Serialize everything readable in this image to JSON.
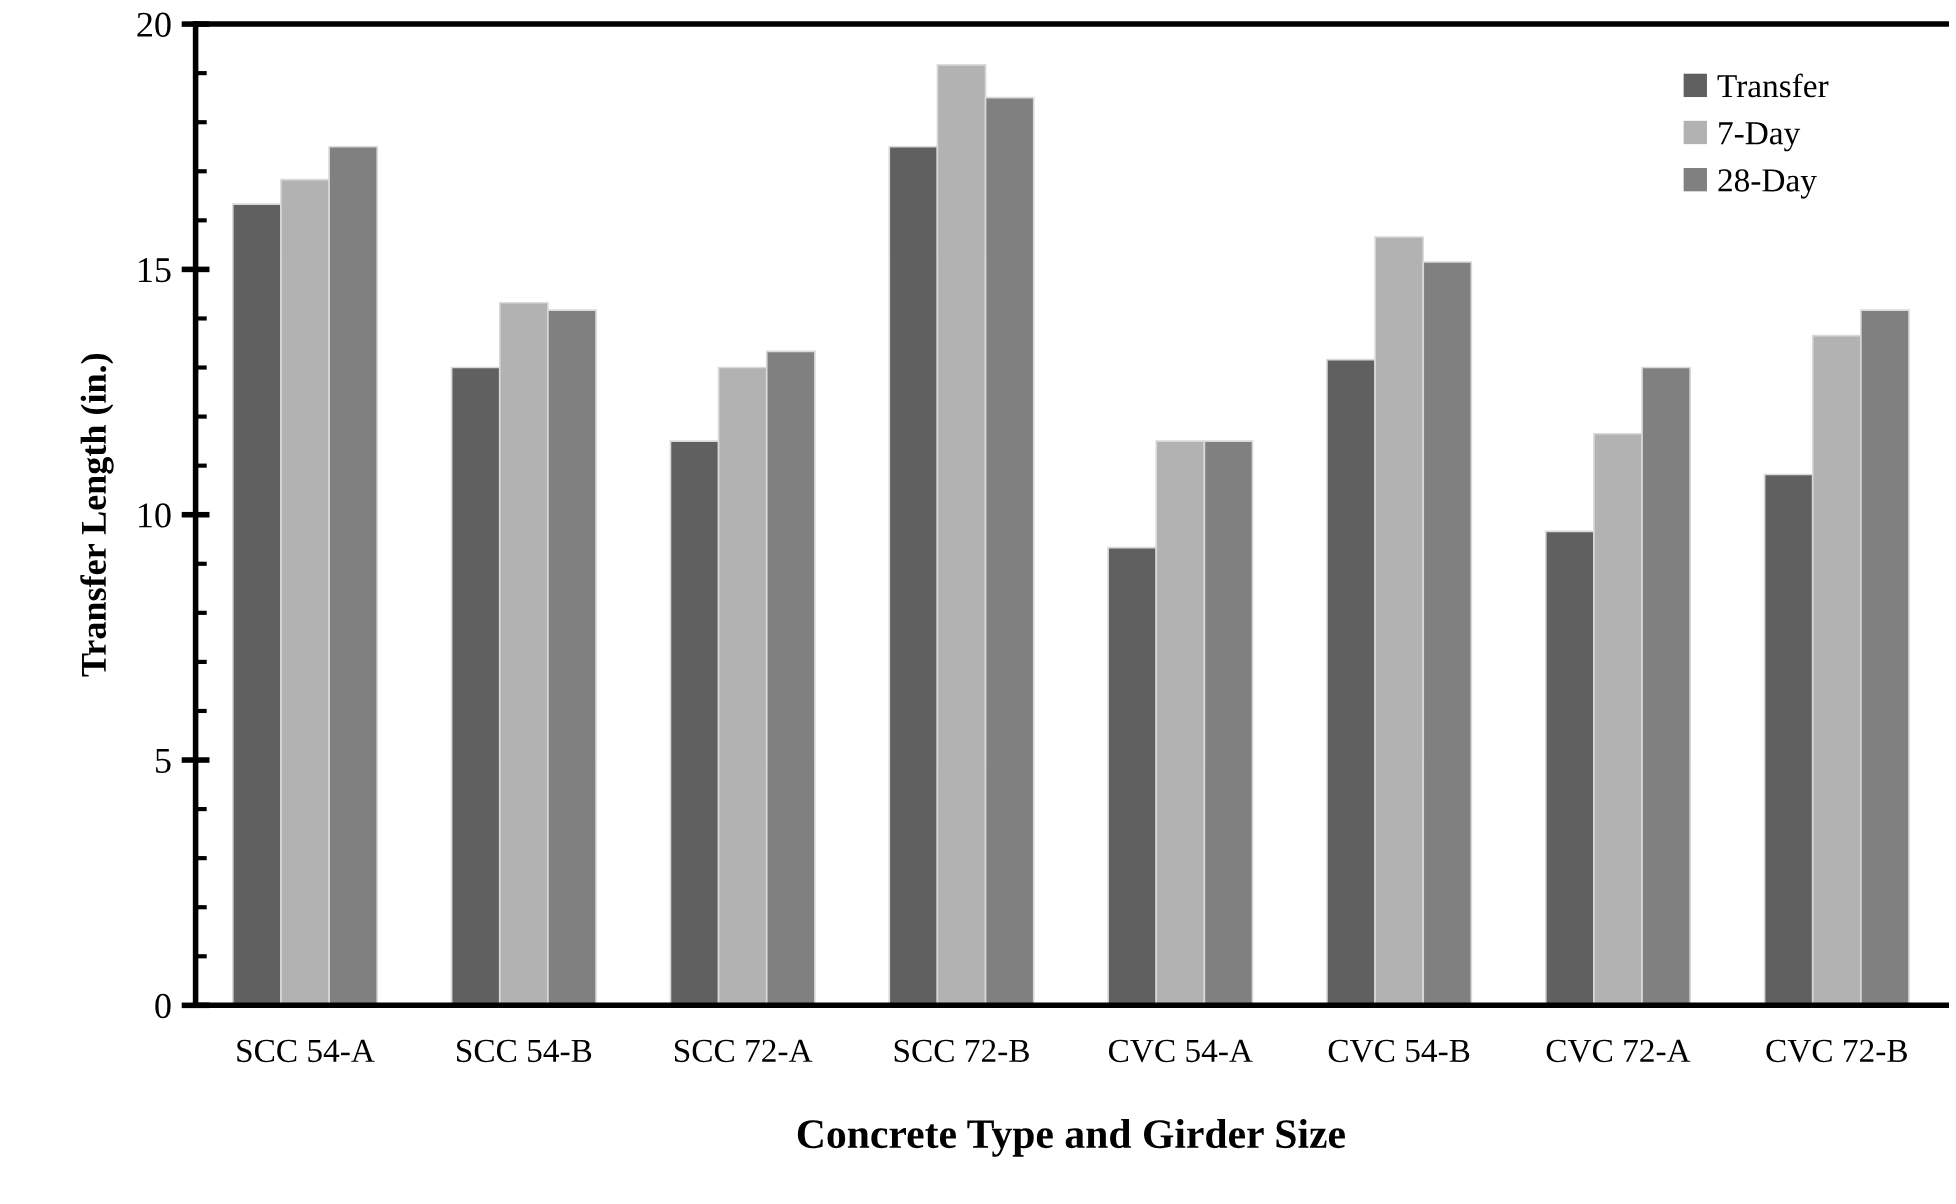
{
  "chart_data": {
    "type": "bar",
    "xlabel": "Concrete Type and Girder Size",
    "ylabel": "Transfer Length (in.)",
    "categories": [
      "SCC 54-A",
      "SCC 54-B",
      "SCC 72-A",
      "SCC 72-B",
      "CVC 54-A",
      "CVC 54-B",
      "CVC 72-A",
      "CVC 72-B"
    ],
    "series": [
      {
        "name": "Transfer",
        "color": "#606060",
        "values": [
          16.33,
          13.0,
          11.5,
          17.5,
          9.33,
          13.16,
          9.66,
          10.82
        ]
      },
      {
        "name": "7-Day",
        "color": "#b2b2b2",
        "values": [
          16.83,
          14.32,
          13.0,
          19.17,
          11.5,
          15.66,
          11.65,
          13.65
        ]
      },
      {
        "name": "28-Day",
        "color": "#808080",
        "values": [
          17.5,
          14.17,
          13.33,
          18.5,
          11.5,
          15.15,
          13.0,
          14.17
        ]
      }
    ],
    "ylim": [
      0,
      20
    ],
    "yticks": [
      0,
      {
        "value": 1,
        "label": null
      },
      {
        "value": 2,
        "label": null
      },
      {
        "value": 3,
        "label": null
      },
      {
        "value": 4,
        "label": null
      },
      5,
      {
        "value": 6,
        "label": null
      },
      {
        "value": 7,
        "label": null
      },
      {
        "value": 8,
        "label": null
      },
      {
        "value": 9,
        "label": null
      },
      10,
      {
        "value": 11,
        "label": null
      },
      {
        "value": 12,
        "label": null
      },
      {
        "value": 13,
        "label": null
      },
      {
        "value": 14,
        "label": null
      },
      15,
      {
        "value": 16,
        "label": null
      },
      {
        "value": 17,
        "label": null
      },
      {
        "value": 18,
        "label": null
      },
      {
        "value": 19,
        "label": null
      },
      20
    ],
    "grid": false,
    "legend": "top right"
  }
}
